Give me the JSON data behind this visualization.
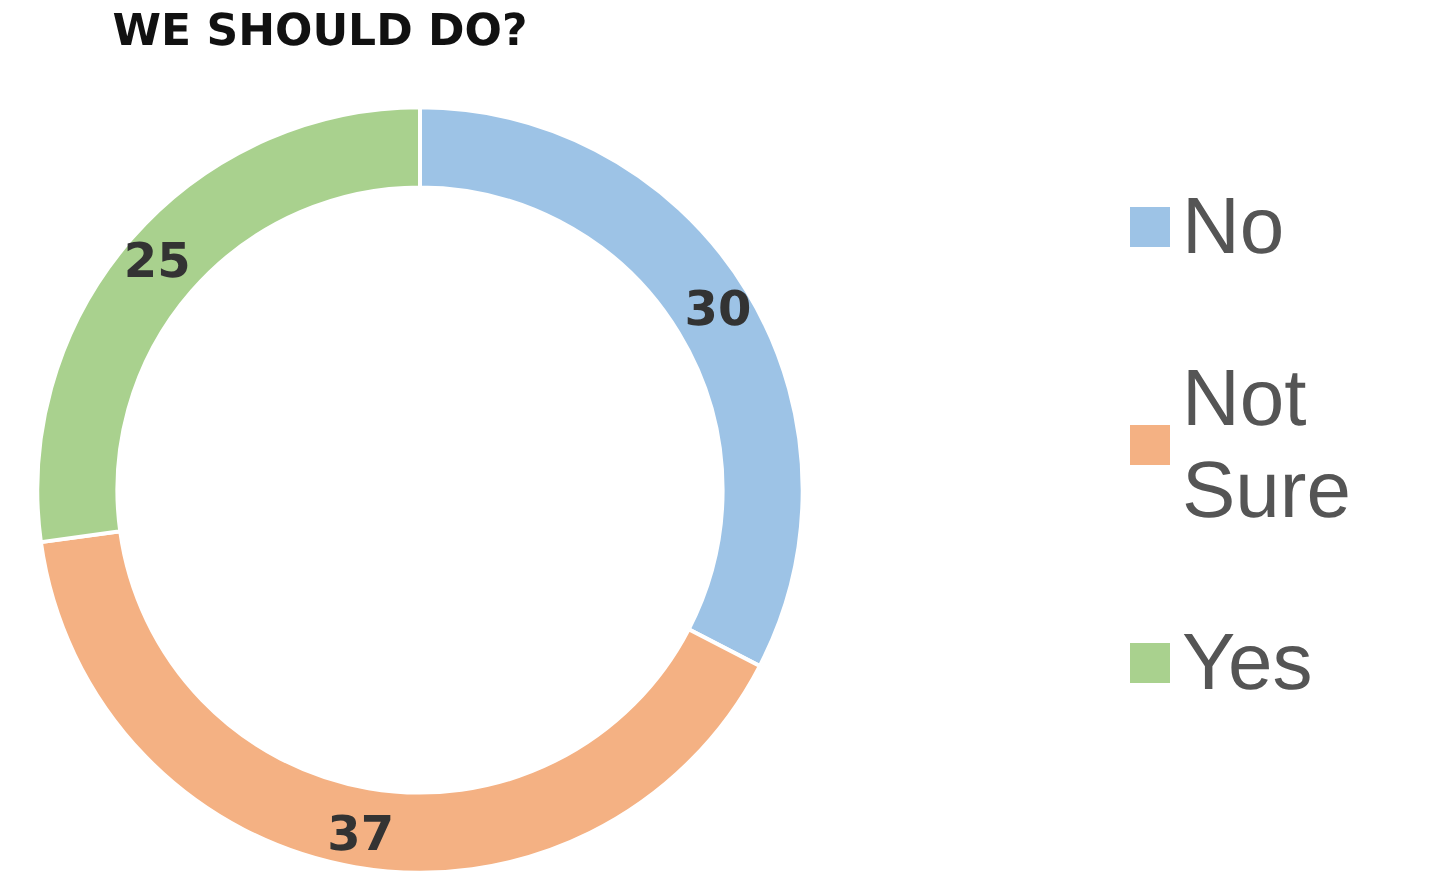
{
  "chart_data": {
    "type": "donut",
    "title": "WE SHOULD DO?",
    "categories": [
      "No",
      "Not Sure",
      "Yes"
    ],
    "values": [
      30,
      37,
      25
    ],
    "colors": [
      "#9dc3e6",
      "#f4b183",
      "#a9d18e"
    ],
    "data_labels": true,
    "legend": "right"
  }
}
